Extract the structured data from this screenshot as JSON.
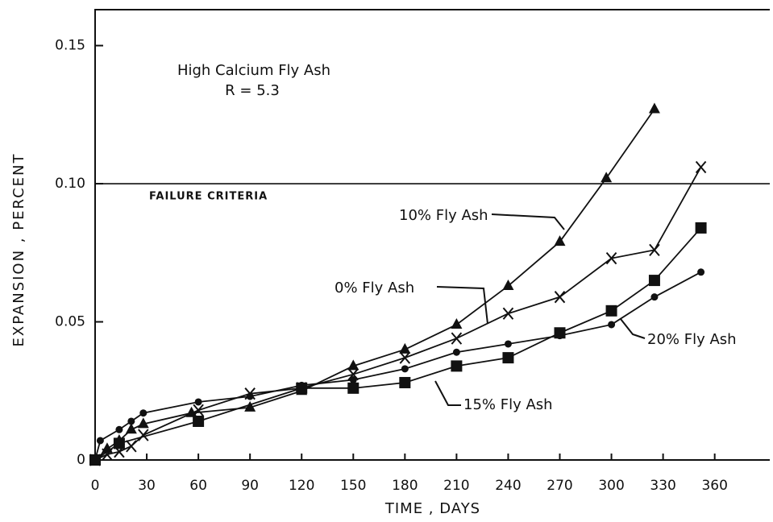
{
  "chart_data": {
    "type": "line",
    "title": "High Calcium Fly Ash",
    "subtitle": "R = 5.3",
    "x_label": "TIME , DAYS",
    "y_label": "EXPANSION , PERCENT",
    "xlim": [
      0,
      392
    ],
    "ylim": [
      0,
      0.163
    ],
    "xticks": [
      0,
      30,
      60,
      90,
      120,
      150,
      180,
      210,
      240,
      270,
      300,
      330,
      360
    ],
    "yticks": [
      0,
      0.05,
      {
        "value": 0.1,
        "label": "0.10"
      },
      0.15
    ],
    "reference_line": {
      "value": 0.1,
      "label": "FAILURE CRITERIA"
    },
    "series": [
      {
        "name": "10% Fly Ash",
        "color": "#111111",
        "marker": "triangle",
        "x": [
          0,
          7,
          14,
          21,
          28,
          56,
          90,
          120,
          150,
          180,
          210,
          240,
          270,
          297,
          325
        ],
        "values": [
          0,
          0.004,
          0.007,
          0.011,
          0.013,
          0.017,
          0.019,
          0.025,
          0.034,
          0.04,
          0.049,
          0.063,
          0.079,
          0.102,
          0.127
        ]
      },
      {
        "name": "0% Fly Ash",
        "color": "#111111",
        "marker": "x",
        "x": [
          0,
          7,
          14,
          21,
          28,
          60,
          90,
          120,
          150,
          180,
          210,
          240,
          270,
          300,
          325,
          352
        ],
        "values": [
          0,
          0.002,
          0.003,
          0.005,
          0.009,
          0.018,
          0.024,
          0.026,
          0.031,
          0.037,
          0.044,
          0.053,
          0.059,
          0.073,
          0.076,
          0.106
        ]
      },
      {
        "name": "20% Fly Ash",
        "color": "#111111",
        "marker": "circle",
        "x": [
          0,
          3,
          14,
          21,
          28,
          60,
          90,
          120,
          150,
          180,
          210,
          240,
          270,
          300,
          325,
          352
        ],
        "values": [
          0,
          0.007,
          0.011,
          0.014,
          0.017,
          0.021,
          0.023,
          0.027,
          0.029,
          0.033,
          0.039,
          0.042,
          0.045,
          0.049,
          0.059,
          0.068
        ]
      },
      {
        "name": "15% Fly Ash",
        "color": "#111111",
        "marker": "square",
        "x": [
          0,
          14,
          60,
          120,
          150,
          180,
          210,
          240,
          270,
          300,
          325,
          352
        ],
        "values": [
          0,
          0.006,
          0.014,
          0.026,
          0.026,
          0.028,
          0.034,
          0.037,
          0.046,
          0.054,
          0.065,
          0.084
        ]
      }
    ]
  }
}
